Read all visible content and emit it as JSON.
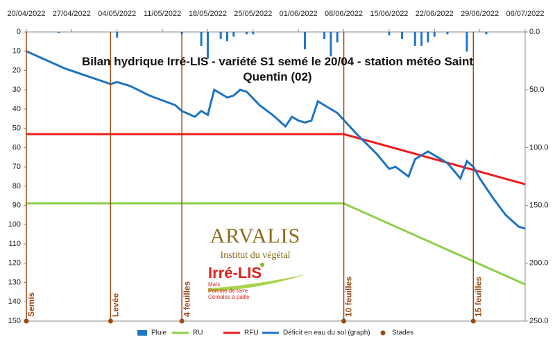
{
  "chart_data": {
    "type": "line",
    "title": "Bilan hydrique Irré-LIS - variété S1 semé le 20/04 - station météo Saint Quentin (02)",
    "xlim": [
      "20/04/2022",
      "06/07/2022"
    ],
    "xticks": [
      "20/04/2022",
      "27/04/2022",
      "04/05/2022",
      "11/05/2022",
      "18/05/2022",
      "25/05/2022",
      "01/06/2022",
      "08/06/2022",
      "15/06/2022",
      "22/06/2022",
      "29/06/2022",
      "06/07/2022"
    ],
    "ylim": [
      0,
      150
    ],
    "y_inverted": true,
    "yticks": [
      0,
      10,
      20,
      30,
      40,
      50,
      60,
      70,
      80,
      90,
      100,
      110,
      120,
      130,
      140,
      150
    ],
    "y2lim": [
      0,
      250
    ],
    "y2_inverted": true,
    "y2ticks": [
      {
        "value": 0,
        "label": "0.0"
      },
      {
        "value": 50,
        "label": "50.0"
      },
      {
        "value": 100,
        "label": "100.0"
      },
      {
        "value": 150,
        "label": "150.0"
      },
      {
        "value": 200,
        "label": "200.0"
      },
      {
        "value": 250,
        "label": "250.0"
      }
    ],
    "series": [
      {
        "name": "Pluie",
        "kind": "bar",
        "axis": "y2",
        "color": "#1f77c4",
        "x": [
          "25/04/2022",
          "04/05/2022",
          "14/05/2022",
          "17/05/2022",
          "18/05/2022",
          "20/05/2022",
          "21/05/2022",
          "22/05/2022",
          "24/05/2022",
          "25/05/2022",
          "02/06/2022",
          "05/06/2022",
          "06/06/2022",
          "07/06/2022",
          "15/06/2022",
          "17/06/2022",
          "19/06/2022",
          "20/06/2022",
          "21/06/2022",
          "22/06/2022",
          "24/06/2022",
          "27/06/2022",
          "30/06/2022"
        ],
        "values": [
          1,
          5,
          2,
          12,
          23,
          6,
          8,
          4,
          2,
          2,
          15,
          6,
          21,
          9,
          3,
          6,
          12,
          12,
          9,
          4,
          2,
          17,
          2
        ]
      },
      {
        "name": "RU",
        "kind": "line",
        "color": "#8dcf4a",
        "x": [
          "20/04/2022",
          "08/06/2022",
          "06/07/2022"
        ],
        "values": [
          89,
          89,
          131
        ]
      },
      {
        "name": "RFU",
        "kind": "line",
        "color": "#ee1c1c",
        "x": [
          "20/04/2022",
          "08/06/2022",
          "06/07/2022"
        ],
        "values": [
          53,
          53,
          79
        ]
      },
      {
        "name": "Déficit en eau du sol (graph)",
        "kind": "line",
        "color": "#1f73c1",
        "x": [
          "20/04/2022",
          "26/04/2022",
          "03/05/2022",
          "04/05/2022",
          "06/05/2022",
          "09/05/2022",
          "13/05/2022",
          "14/05/2022",
          "16/05/2022",
          "17/05/2022",
          "18/05/2022",
          "19/05/2022",
          "21/05/2022",
          "22/05/2022",
          "23/05/2022",
          "24/05/2022",
          "26/05/2022",
          "28/05/2022",
          "30/05/2022",
          "31/05/2022",
          "01/06/2022",
          "02/06/2022",
          "03/06/2022",
          "04/06/2022",
          "05/06/2022",
          "07/06/2022",
          "10/06/2022",
          "13/06/2022",
          "15/06/2022",
          "16/06/2022",
          "18/06/2022",
          "19/06/2022",
          "20/06/2022",
          "21/06/2022",
          "22/06/2022",
          "24/06/2022",
          "25/06/2022",
          "26/06/2022",
          "27/06/2022",
          "28/06/2022",
          "29/06/2022",
          "01/07/2022",
          "03/07/2022",
          "05/07/2022",
          "06/07/2022"
        ],
        "values": [
          10,
          19,
          27,
          26,
          28,
          33,
          38,
          41,
          44,
          41,
          43,
          30,
          34,
          33,
          30,
          31,
          38,
          43,
          49,
          44,
          46,
          47,
          46,
          36,
          38,
          42,
          53,
          63,
          71,
          70,
          75,
          66,
          64,
          62,
          64,
          68,
          72,
          76,
          67,
          70,
          76,
          86,
          95,
          101,
          102
        ]
      },
      {
        "name": "Stades",
        "kind": "stage",
        "color": "#9a4a16",
        "x": [
          "20/04/2022",
          "03/05/2022",
          "14/05/2022",
          "08/06/2022",
          "28/06/2022"
        ],
        "values": [
          150,
          150,
          150,
          150,
          150
        ],
        "labels": [
          "Semis",
          "Levée",
          "4 feuilles",
          "10 feuilles",
          "15 feuilles"
        ]
      }
    ],
    "logo": {
      "brand": "ARVALIS",
      "tagline": "Institut du végétal",
      "product": "Irré-LIS",
      "crops": [
        "Maïs",
        "Pomme de terre",
        "Céréales à paille"
      ]
    }
  }
}
